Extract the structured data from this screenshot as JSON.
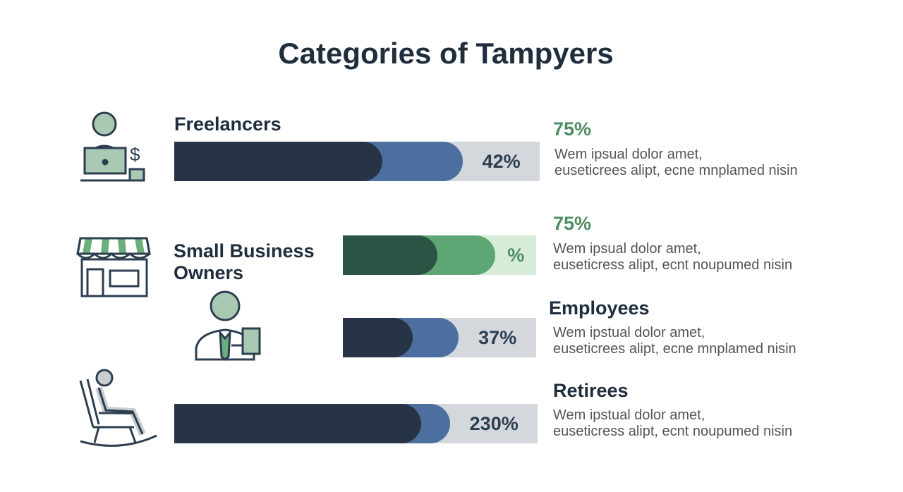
{
  "title": "Categories of Tampyers",
  "colors": {
    "dark": "#263446",
    "blue": "#4d6fa0",
    "light": "#d4d8dd",
    "dark_green": "#2c5444",
    "green": "#5ea774",
    "light_green": "#d6ecd9",
    "accent_green": "#4e8c63"
  },
  "rows": [
    {
      "label": "Freelancers",
      "icon": "freelancer-laptop-dollar-icon",
      "stat": "75%",
      "desc_line1": "Wem ipsual dolor amet,",
      "desc_line2": "euseticrees alipt, ecne mnplamed nisin",
      "bar_label": "42%",
      "segments": [
        0.57,
        0.22,
        0.21
      ],
      "palette": "blue"
    },
    {
      "label": "Small Business Owners",
      "icon": "storefront-icon",
      "stat": "75%",
      "desc_line1": "Wem ipsual dolor amet,",
      "desc_line2": "euseticress alipt, ecnt noupumed nisin",
      "bar_label": "%",
      "segments": [
        0.49,
        0.3,
        0.21
      ],
      "palette": "green"
    },
    {
      "label": "Employees",
      "icon": "employee-tie-icon",
      "desc_line1": "Wem ipstual dolor amet,",
      "desc_line2": "euseticrees alipt, ecne mnplamed nisin",
      "bar_label": "37%",
      "segments": [
        0.36,
        0.24,
        0.4
      ],
      "palette": "blue"
    },
    {
      "label": "Retirees",
      "icon": "rocking-chair-retiree-icon",
      "desc_line1": "Wem ipstual dolor amet,",
      "desc_line2": "euseticress alipt, ecnt noupumed nisin",
      "bar_label": "230%",
      "segments": [
        0.68,
        0.08,
        0.24
      ],
      "palette": "blue"
    }
  ]
}
